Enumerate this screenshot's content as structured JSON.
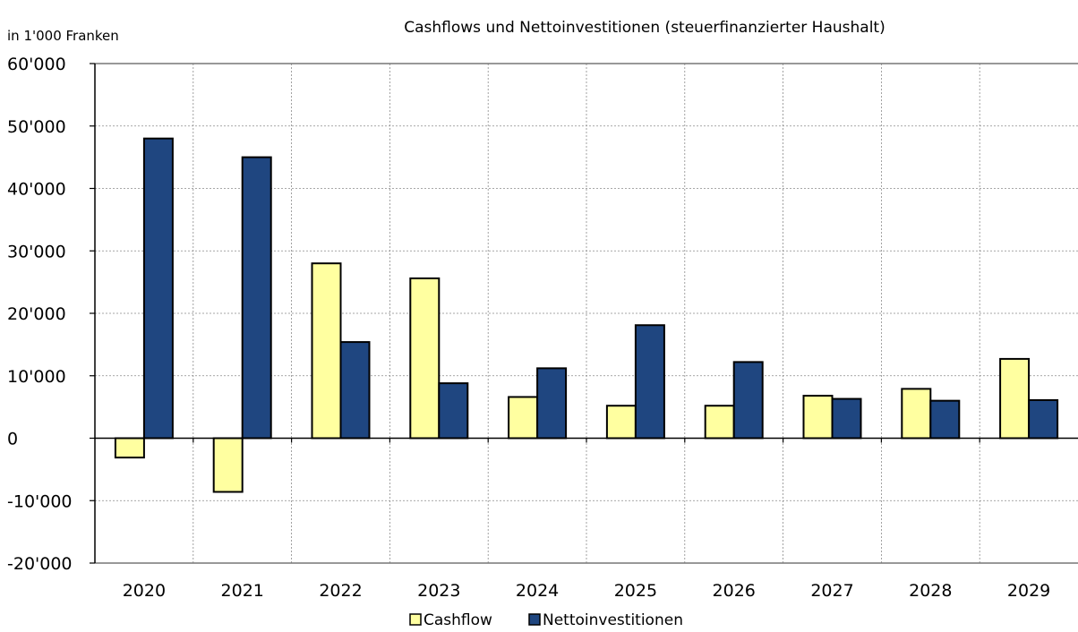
{
  "chart_data": {
    "type": "bar",
    "title": "Cashflows und Nettoinvestitionen (steuerfinanzierter Haushalt)",
    "unit_label": "in 1'000 Franken",
    "categories": [
      "2020",
      "2021",
      "2022",
      "2023",
      "2024",
      "2025",
      "2026",
      "2027",
      "2028",
      "2029"
    ],
    "series": [
      {
        "name": "Cashflow",
        "color": "#FFFFA0",
        "values": [
          -3100,
          -8600,
          28000,
          25600,
          6600,
          5200,
          5200,
          6800,
          7900,
          12700
        ]
      },
      {
        "name": "Nettoinvestitionen",
        "color": "#1F4680",
        "values": [
          48000,
          45000,
          15400,
          8800,
          11200,
          18100,
          12200,
          6300,
          6000,
          6100
        ]
      }
    ],
    "ylim": [
      -20000,
      60000
    ],
    "yticks": [
      60000,
      50000,
      40000,
      30000,
      20000,
      10000,
      0,
      -10000,
      -20000
    ],
    "ytick_labels": [
      "60'000",
      "50'000",
      "40'000",
      "30'000",
      "20'000",
      "10'000",
      "0",
      "-10'000",
      "-20'000"
    ],
    "negative_label_color": "#E8161B",
    "grid": true,
    "legend_position": "bottom-center"
  }
}
